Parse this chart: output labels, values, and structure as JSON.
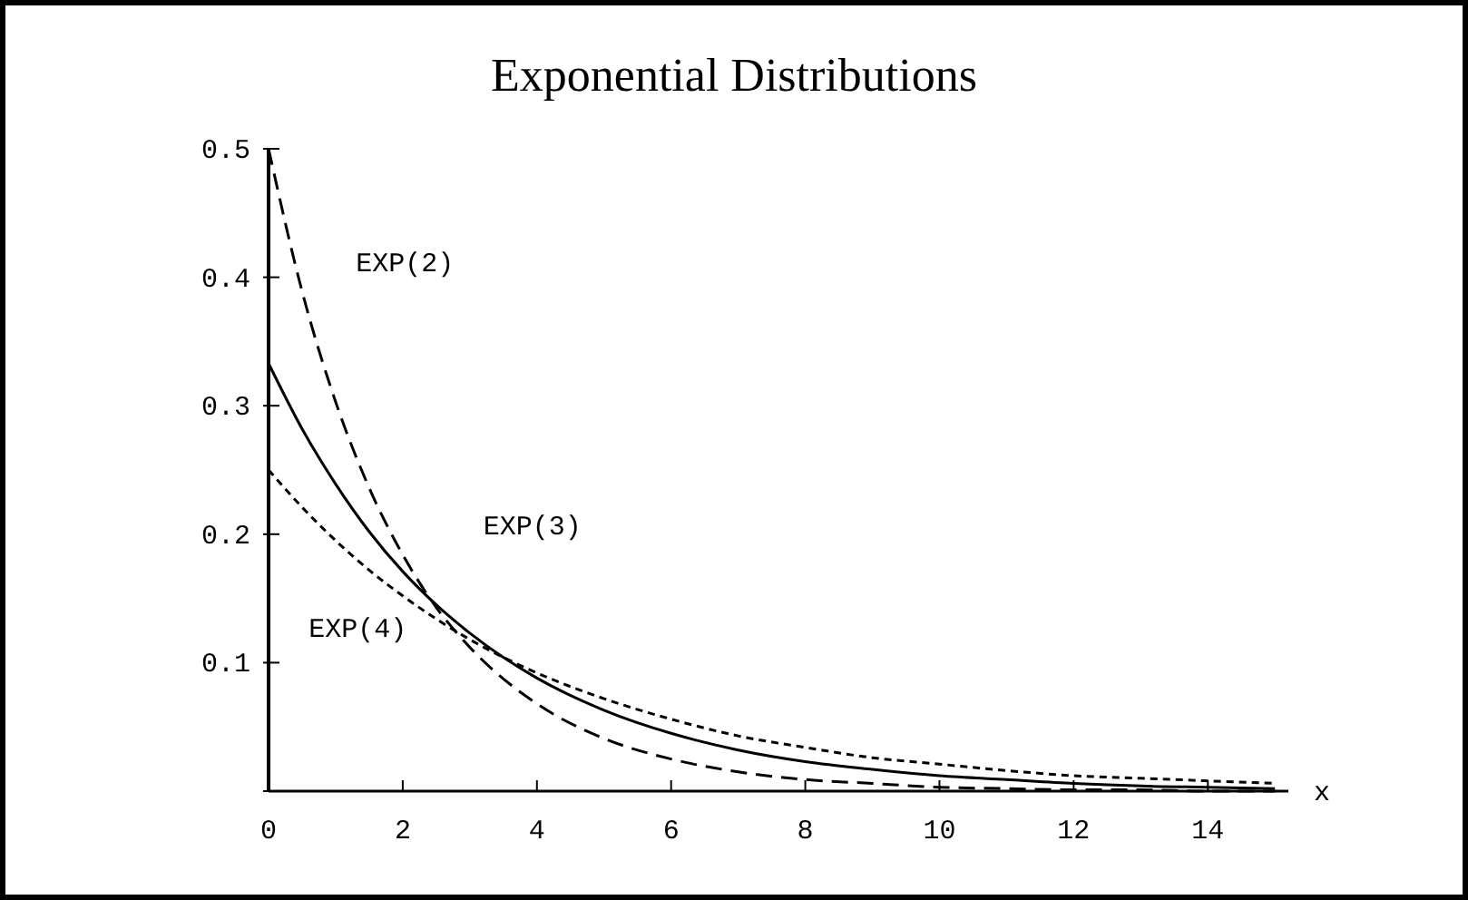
{
  "chart_data": {
    "type": "line",
    "title": "Exponential Distributions",
    "xlabel": "x",
    "x": [
      0,
      0.5,
      1,
      1.5,
      2,
      2.5,
      3,
      4,
      5,
      6,
      7,
      8,
      9,
      10,
      11,
      12,
      13,
      14,
      15
    ],
    "series": [
      {
        "name": "EXP(2)",
        "color": "#000000",
        "line_style": "dashed",
        "values": [
          0.5,
          0.389,
          0.303,
          0.236,
          0.184,
          0.143,
          0.112,
          0.068,
          0.041,
          0.025,
          0.015,
          0.009,
          0.006,
          0.003,
          0.002,
          0.001,
          0.001,
          0,
          0
        ]
      },
      {
        "name": "EXP(3)",
        "color": "#000000",
        "line_style": "solid",
        "values": [
          0.333,
          0.282,
          0.239,
          0.202,
          0.171,
          0.145,
          0.123,
          0.088,
          0.063,
          0.045,
          0.032,
          0.023,
          0.017,
          0.012,
          0.009,
          0.006,
          0.004,
          0.003,
          0.002
        ]
      },
      {
        "name": "EXP(4)",
        "color": "#000000",
        "line_style": "dotted",
        "values": [
          0.25,
          0.221,
          0.195,
          0.172,
          0.152,
          0.134,
          0.118,
          0.092,
          0.072,
          0.056,
          0.043,
          0.034,
          0.026,
          0.021,
          0.016,
          0.012,
          0.01,
          0.008,
          0.006
        ]
      }
    ],
    "xlim": [
      0,
      15.2
    ],
    "ylim": [
      0,
      0.5
    ],
    "xticks": [
      0,
      2,
      4,
      6,
      8,
      10,
      12,
      14
    ],
    "yticks": [
      {
        "value": 0,
        "label": null
      },
      0.1,
      0.2,
      0.3,
      0.4,
      0.5
    ],
    "grid": false
  }
}
